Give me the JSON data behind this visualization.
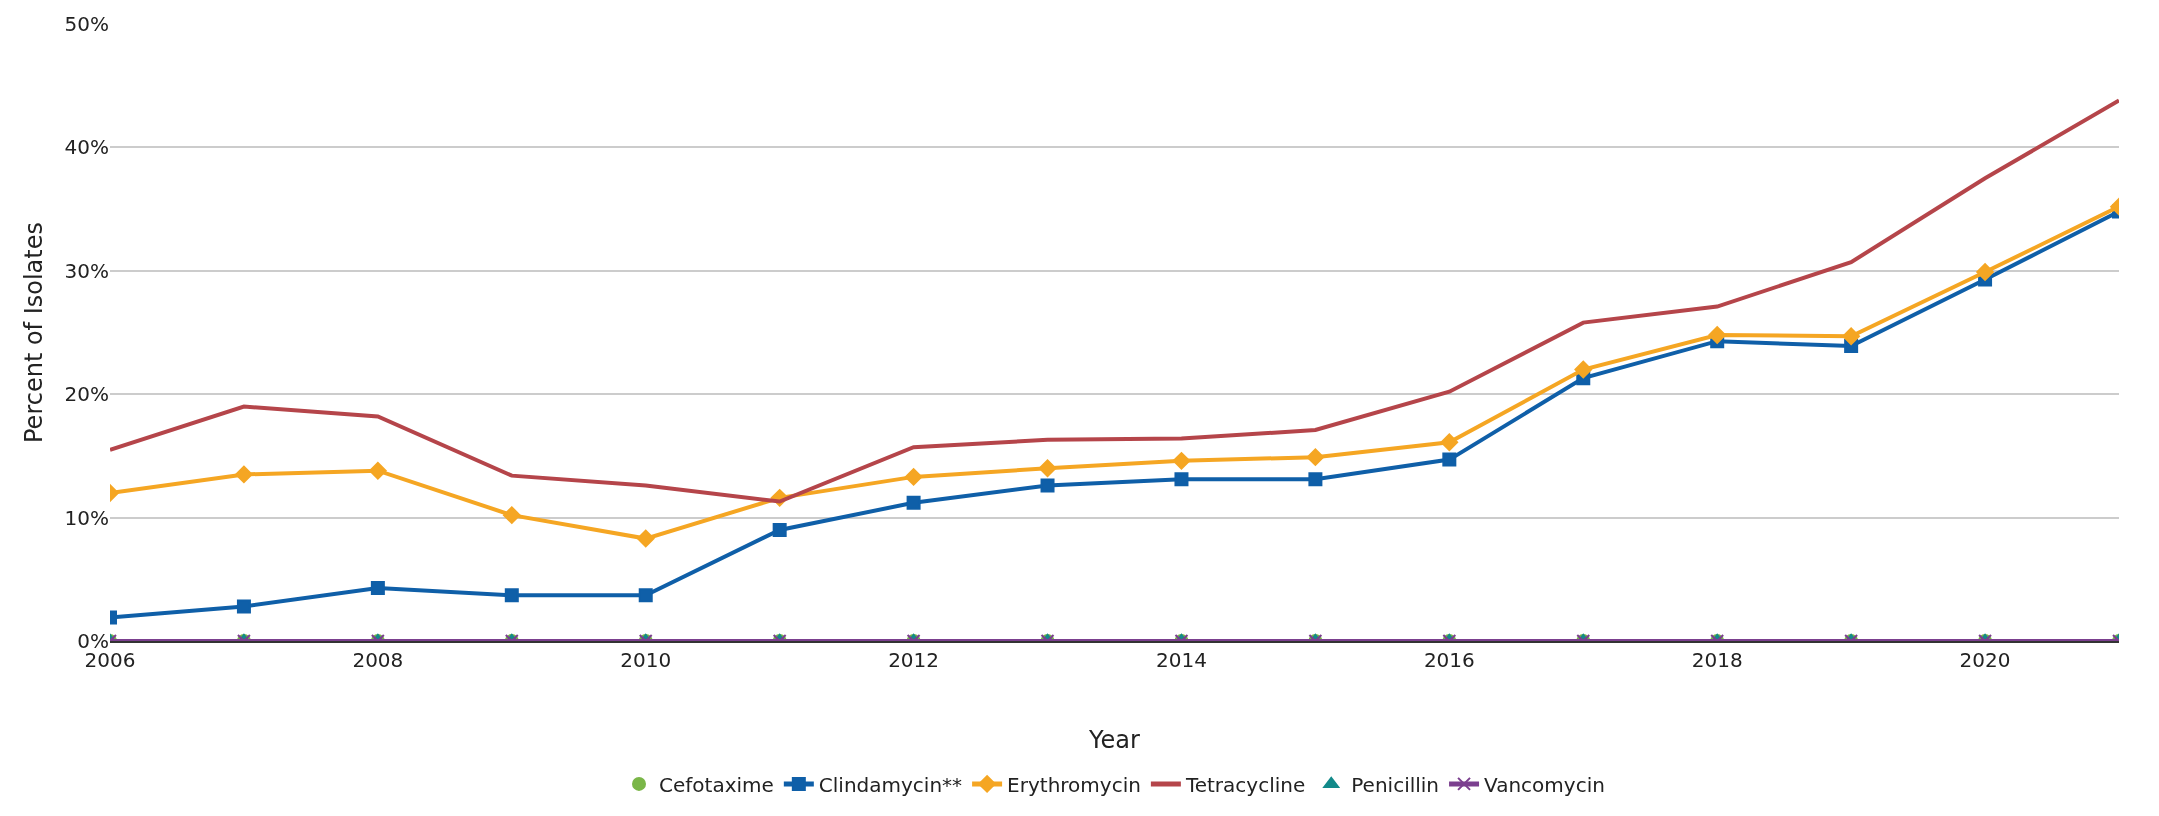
{
  "chart_data": {
    "type": "line",
    "xlabel": "Year",
    "ylabel": "Percent of Isolates",
    "x": [
      2006,
      2007,
      2008,
      2009,
      2010,
      2011,
      2012,
      2013,
      2014,
      2015,
      2016,
      2017,
      2018,
      2019,
      2020,
      2021
    ],
    "series": [
      {
        "name": "Cefotaxime",
        "color": "#7ab648",
        "type": "scatter",
        "marker": "circle",
        "values": [
          0,
          0,
          0,
          0,
          0,
          0,
          0,
          0,
          0,
          0,
          0,
          0,
          0,
          0,
          0,
          0
        ]
      },
      {
        "name": "Clindamycin**",
        "color": "#0f5fa8",
        "marker": "square",
        "values": [
          1.9,
          2.8,
          4.3,
          3.7,
          3.7,
          9.0,
          11.2,
          12.6,
          13.1,
          13.1,
          14.7,
          21.3,
          24.3,
          23.9,
          29.3,
          34.8
        ]
      },
      {
        "name": "Erythromycin",
        "color": "#f5a623",
        "marker": "diamond",
        "values": [
          12.0,
          13.5,
          13.8,
          10.2,
          8.3,
          11.6,
          13.3,
          14.0,
          14.6,
          14.9,
          16.1,
          22.0,
          24.8,
          24.7,
          29.9,
          35.2
        ]
      },
      {
        "name": "Tetracycline",
        "color": "#b5454a",
        "marker": "none",
        "values": [
          15.5,
          19.0,
          18.2,
          13.4,
          12.6,
          11.3,
          15.7,
          16.3,
          16.4,
          17.1,
          20.2,
          25.8,
          27.1,
          30.7,
          37.5,
          43.8
        ]
      },
      {
        "name": "Penicillin",
        "color": "#138a8a",
        "type": "scatter",
        "marker": "triangle",
        "values": [
          0,
          0,
          0,
          0,
          0,
          0,
          0,
          0,
          0,
          0,
          0,
          0,
          0,
          0,
          0,
          0
        ]
      },
      {
        "name": "Vancomycin",
        "color": "#7b3f8f",
        "marker": "cross",
        "values": [
          0,
          0,
          0,
          0,
          0,
          0,
          0,
          0,
          0,
          0,
          0,
          0,
          0,
          0,
          0,
          0
        ]
      }
    ],
    "xlim": [
      2006,
      2021
    ],
    "xticks": [
      2006,
      2008,
      2010,
      2012,
      2014,
      2016,
      2018,
      2020
    ],
    "ylim": [
      0,
      50
    ],
    "yticks": [
      {
        "value": 0,
        "label": "0%"
      },
      {
        "value": 10,
        "label": "10%"
      },
      {
        "value": 20,
        "label": "20%"
      },
      {
        "value": 30,
        "label": "30%"
      },
      {
        "value": 40,
        "label": "40%"
      },
      {
        "value": 50,
        "label": "50%"
      }
    ],
    "grid": "y",
    "legend": "bottom",
    "line_style": "solid"
  }
}
